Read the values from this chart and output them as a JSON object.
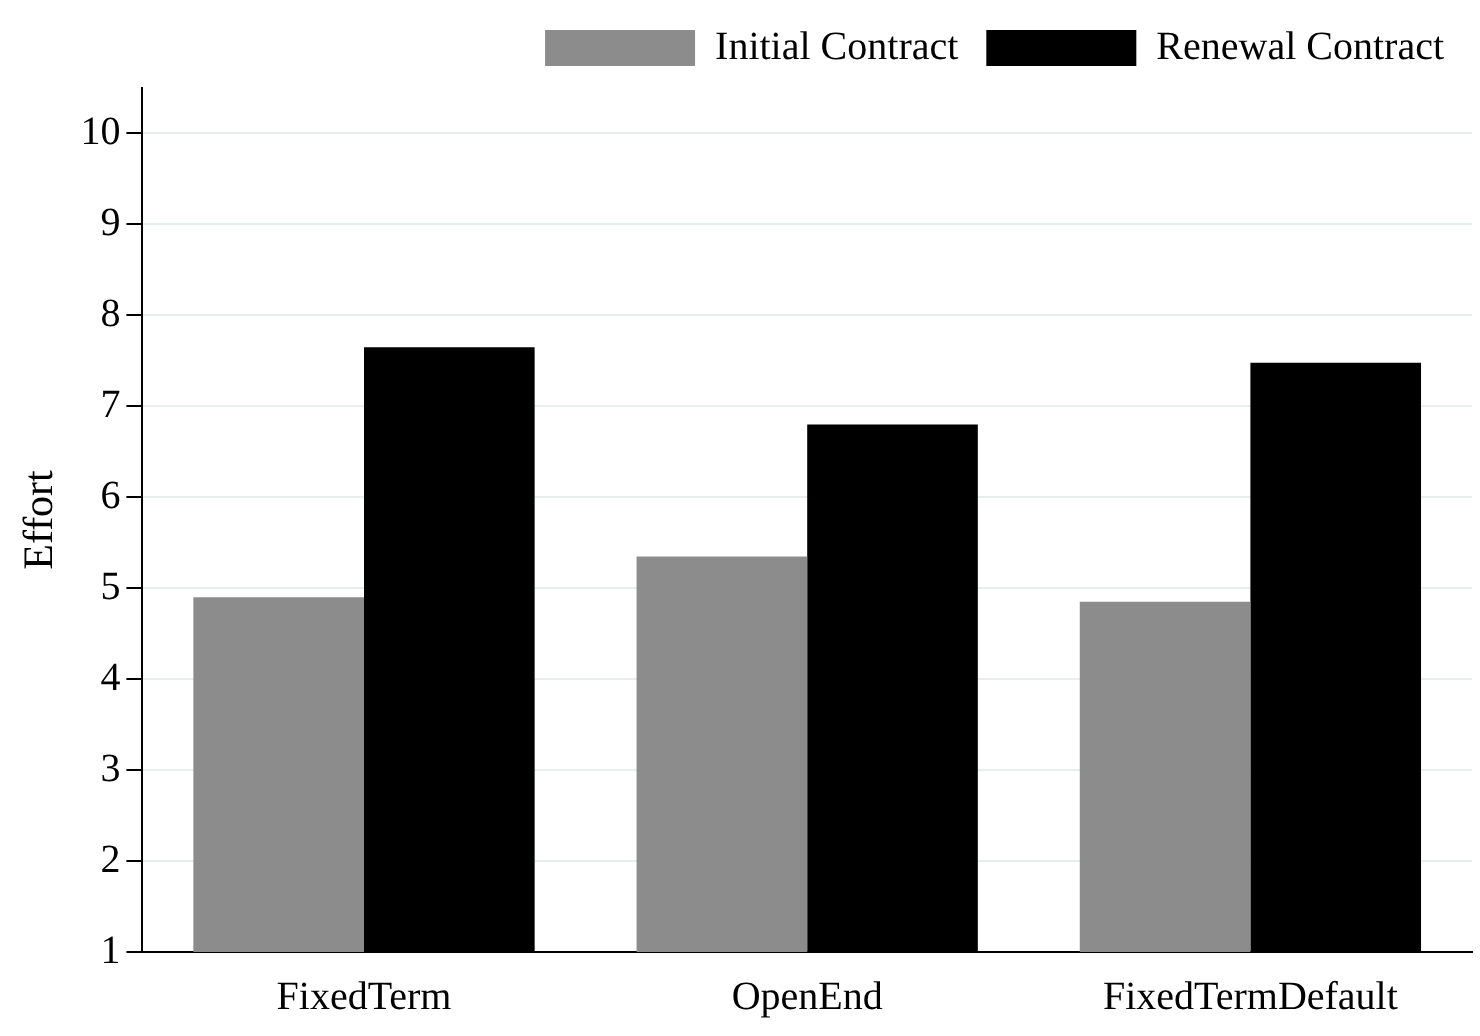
{
  "chart_data": {
    "type": "bar",
    "ylabel": "Effort",
    "categories": [
      "FixedTerm",
      "OpenEnd",
      "FixedTermDefault"
    ],
    "series": [
      {
        "name": "Initial Contract",
        "color": "#8c8c8c",
        "values": [
          4.9,
          5.35,
          4.85
        ]
      },
      {
        "name": "Renewal Contract",
        "color": "#000000",
        "values": [
          7.65,
          6.8,
          7.48
        ]
      }
    ],
    "ylim": [
      1,
      10.5
    ],
    "yticks": [
      1,
      2,
      3,
      4,
      5,
      6,
      7,
      8,
      9,
      10
    ],
    "grid": "y",
    "legend": "top right"
  }
}
